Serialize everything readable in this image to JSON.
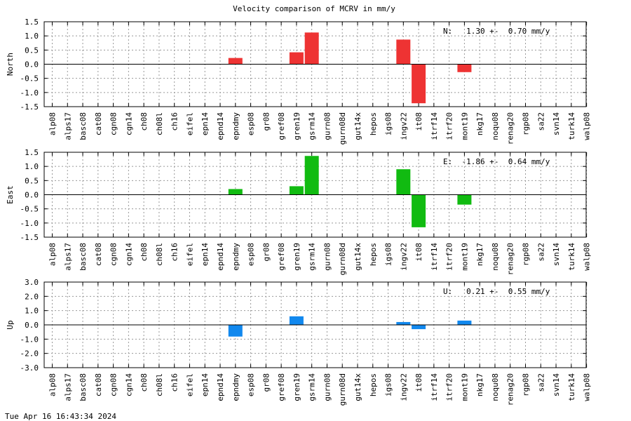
{
  "title": "Velocity comparison of MCRV in mm/y",
  "timestamp": "Tue Apr 16 16:43:34 2024",
  "chart_data": [
    {
      "type": "bar",
      "ylabel": "North",
      "ylim": [
        -1.5,
        1.5
      ],
      "yticks": [
        1.5,
        1.0,
        0.5,
        0.0,
        -0.5,
        -1.0,
        -1.5
      ],
      "color": "#ee3333",
      "annotation": "N:   1.30 +-  0.70 mm/y",
      "categories": [
        "alp08",
        "alps17",
        "basc08",
        "cat08",
        "cgn08",
        "cgn14",
        "ch08",
        "ch08l",
        "ch16",
        "eifel",
        "epn14",
        "epnd14",
        "epndmy",
        "esp08",
        "gr08",
        "gref08",
        "gren19",
        "gsrm14",
        "gurn08",
        "gurn08d",
        "gut14x",
        "hepos",
        "igs08",
        "ingv22",
        "it08",
        "itrf14",
        "itrf20",
        "mont19",
        "nkg17",
        "noqu08",
        "renag20",
        "rgp08",
        "sa22",
        "svn14",
        "turk14",
        "walp08"
      ],
      "values": [
        null,
        null,
        null,
        null,
        null,
        null,
        null,
        null,
        null,
        null,
        null,
        null,
        0.22,
        null,
        null,
        null,
        0.42,
        1.12,
        null,
        null,
        null,
        null,
        null,
        0.87,
        -1.38,
        null,
        null,
        -0.28,
        null,
        null,
        null,
        null,
        null,
        null,
        null,
        null
      ]
    },
    {
      "type": "bar",
      "ylabel": "East",
      "ylim": [
        -1.5,
        1.5
      ],
      "yticks": [
        1.5,
        1.0,
        0.5,
        0.0,
        -0.5,
        -1.0,
        -1.5
      ],
      "color": "#11bb11",
      "annotation": "E:  -1.86 +-  0.64 mm/y",
      "categories": [
        "alp08",
        "alps17",
        "basc08",
        "cat08",
        "cgn08",
        "cgn14",
        "ch08",
        "ch08l",
        "ch16",
        "eifel",
        "epn14",
        "epnd14",
        "epndmy",
        "esp08",
        "gr08",
        "gref08",
        "gren19",
        "gsrm14",
        "gurn08",
        "gurn08d",
        "gut14x",
        "hepos",
        "igs08",
        "ingv22",
        "it08",
        "itrf14",
        "itrf20",
        "mont19",
        "nkg17",
        "noqu08",
        "renag20",
        "rgp08",
        "sa22",
        "svn14",
        "turk14",
        "walp08"
      ],
      "values": [
        null,
        null,
        null,
        null,
        null,
        null,
        null,
        null,
        null,
        null,
        null,
        null,
        0.2,
        null,
        null,
        null,
        0.3,
        1.37,
        null,
        null,
        null,
        null,
        null,
        0.9,
        -1.15,
        null,
        null,
        -0.35,
        null,
        null,
        null,
        null,
        null,
        null,
        null,
        null
      ]
    },
    {
      "type": "bar",
      "ylabel": "Up",
      "ylim": [
        -3.0,
        3.0
      ],
      "yticks": [
        3.0,
        2.0,
        1.0,
        0.0,
        -1.0,
        -2.0,
        -3.0
      ],
      "color": "#1188ee",
      "annotation": "U:   0.21 +-  0.55 mm/y",
      "categories": [
        "alp08",
        "alps17",
        "basc08",
        "cat08",
        "cgn08",
        "cgn14",
        "ch08",
        "ch08l",
        "ch16",
        "eifel",
        "epn14",
        "epnd14",
        "epndmy",
        "esp08",
        "gr08",
        "gref08",
        "gren19",
        "gsrm14",
        "gurn08",
        "gurn08d",
        "gut14x",
        "hepos",
        "igs08",
        "ingv22",
        "it08",
        "itrf14",
        "itrf20",
        "mont19",
        "nkg17",
        "noqu08",
        "renag20",
        "rgp08",
        "sa22",
        "svn14",
        "turk14",
        "walp08"
      ],
      "values": [
        null,
        null,
        null,
        null,
        null,
        null,
        null,
        null,
        null,
        null,
        null,
        null,
        -0.82,
        null,
        null,
        null,
        0.6,
        null,
        null,
        null,
        null,
        null,
        null,
        0.2,
        -0.3,
        null,
        null,
        0.3,
        null,
        null,
        null,
        null,
        null,
        null,
        null,
        null
      ]
    }
  ]
}
